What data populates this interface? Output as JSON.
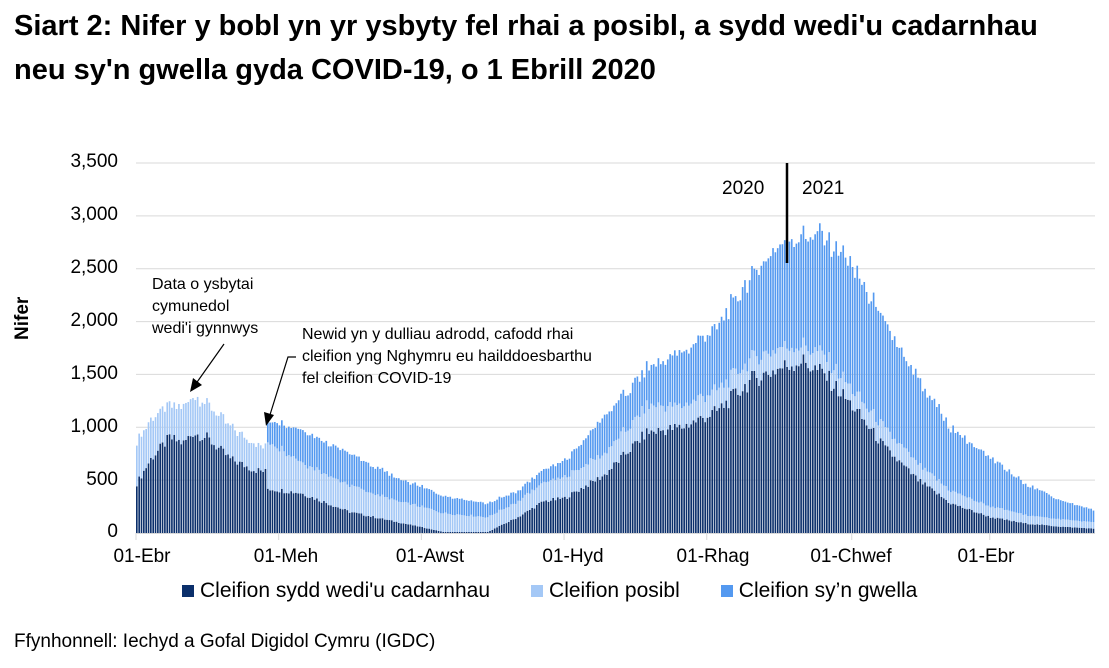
{
  "title": "Siart 2: Nifer y bobl yn yr ysbyty fel rhai a posibl, a sydd wedi'u cadarnhau neu sy'n gwella gyda COVID-19, o 1 Ebrill 2020",
  "source": "Ffynhonnell: Iechyd a Gofal Digidol Cymru (IGDC)",
  "colors": {
    "confirmed": "#0b2f6b",
    "suspected": "#a4c8f6",
    "recovering": "#5499f0",
    "grid": "#d9d9d9"
  },
  "chart_data": {
    "type": "bar",
    "stacked": true,
    "title": "Siart 2: Nifer y bobl yn yr ysbyty fel rhai a posibl, a sydd wedi'u cadarnhau neu sy'n gwella gyda COVID-19, o 1 Ebrill 2020",
    "xlabel": "",
    "ylabel": "Nifer",
    "ylim": [
      0,
      3500
    ],
    "yticks": [
      0,
      500,
      1000,
      1500,
      2000,
      2500,
      3000,
      3500
    ],
    "ytick_labels": [
      "0",
      "500",
      "1,000",
      "1,500",
      "2,000",
      "2,500",
      "3,000",
      "3,500"
    ],
    "xtick_labels": [
      "01-Ebr",
      "01-Meh",
      "01-Awst",
      "01-Hyd",
      "01-Rhag",
      "01-Chwef",
      "01-Ebr"
    ],
    "xtick_day_offsets": [
      0,
      61,
      122,
      183,
      244,
      306,
      365
    ],
    "grid": true,
    "legend_position": "bottom",
    "frequency": "daily",
    "start_date": "2020-04-01",
    "num_days": 410,
    "series_keypoints_note": "anchor values [day_offset, value], daily bars linearly interpolated between anchors",
    "series": [
      {
        "name": "Cleifion sydd wedi'u cadarnhau",
        "key": "confirmed",
        "anchors": [
          [
            0,
            470
          ],
          [
            6,
            700
          ],
          [
            14,
            900
          ],
          [
            20,
            850
          ],
          [
            24,
            950
          ],
          [
            30,
            900
          ],
          [
            40,
            700
          ],
          [
            50,
            600
          ],
          [
            55,
            580
          ],
          [
            56,
            420
          ],
          [
            70,
            380
          ],
          [
            91,
            200
          ],
          [
            110,
            110
          ],
          [
            125,
            40
          ],
          [
            131,
            10
          ],
          [
            150,
            10
          ],
          [
            163,
            150
          ],
          [
            174,
            300
          ],
          [
            183,
            330
          ],
          [
            200,
            550
          ],
          [
            218,
            950
          ],
          [
            233,
            1000
          ],
          [
            248,
            1150
          ],
          [
            263,
            1450
          ],
          [
            275,
            1560
          ],
          [
            284,
            1630
          ],
          [
            294,
            1500
          ],
          [
            306,
            1200
          ],
          [
            320,
            800
          ],
          [
            334,
            500
          ],
          [
            348,
            280
          ],
          [
            365,
            150
          ],
          [
            380,
            90
          ],
          [
            395,
            60
          ],
          [
            410,
            40
          ]
        ]
      },
      {
        "name": "Cleifion posibl",
        "key": "suspected",
        "anchors": [
          [
            0,
            400
          ],
          [
            10,
            350
          ],
          [
            14,
            300
          ],
          [
            24,
            350
          ],
          [
            30,
            330
          ],
          [
            40,
            300
          ],
          [
            50,
            250
          ],
          [
            55,
            230
          ],
          [
            56,
            450
          ],
          [
            70,
            300
          ],
          [
            91,
            250
          ],
          [
            110,
            200
          ],
          [
            125,
            190
          ],
          [
            150,
            140
          ],
          [
            163,
            150
          ],
          [
            183,
            200
          ],
          [
            200,
            200
          ],
          [
            218,
            250
          ],
          [
            233,
            200
          ],
          [
            248,
            200
          ],
          [
            263,
            200
          ],
          [
            275,
            200
          ],
          [
            284,
            150
          ],
          [
            294,
            180
          ],
          [
            306,
            150
          ],
          [
            320,
            180
          ],
          [
            334,
            150
          ],
          [
            348,
            120
          ],
          [
            365,
            100
          ],
          [
            380,
            80
          ],
          [
            395,
            70
          ],
          [
            410,
            60
          ]
        ]
      },
      {
        "name": "Cleifion sy’n gwella",
        "key": "recovering",
        "anchors": [
          [
            0,
            0
          ],
          [
            55,
            0
          ],
          [
            56,
            200
          ],
          [
            70,
            300
          ],
          [
            91,
            300
          ],
          [
            110,
            220
          ],
          [
            125,
            180
          ],
          [
            150,
            130
          ],
          [
            163,
            100
          ],
          [
            174,
            120
          ],
          [
            183,
            150
          ],
          [
            200,
            350
          ],
          [
            218,
            350
          ],
          [
            233,
            500
          ],
          [
            248,
            600
          ],
          [
            263,
            800
          ],
          [
            275,
            950
          ],
          [
            284,
            1050
          ],
          [
            294,
            1100
          ],
          [
            306,
            1150
          ],
          [
            320,
            1000
          ],
          [
            334,
            800
          ],
          [
            348,
            600
          ],
          [
            365,
            450
          ],
          [
            380,
            300
          ],
          [
            395,
            180
          ],
          [
            410,
            110
          ]
        ]
      }
    ],
    "annotations": [
      {
        "text": "Data o ysbytai cymunedol wedi'i gynnwys",
        "day": 24
      },
      {
        "text": "Newid yn y dulliau adrodd, cafodd rhai cleifion yng Nghymru eu hailddoesbarthu fel cleifion COVID-19",
        "day": 55
      },
      {
        "text": "2020 | 2021",
        "type": "year-divider",
        "day": 276
      }
    ]
  },
  "axis": {
    "ylabel": "Nifer",
    "yticks": [
      "3,500",
      "3,000",
      "2,500",
      "2,000",
      "1,500",
      "1,000",
      "500",
      "0"
    ],
    "xticks": [
      "01-Ebr",
      "01-Meh",
      "01-Awst",
      "01-Hyd",
      "01-Rhag",
      "01-Chwef",
      "01-Ebr"
    ]
  },
  "annotations": {
    "community": [
      "Data o ysbytai",
      "cymunedol",
      "wedi'i gynnwys"
    ],
    "reporting": [
      "Newid yn y dulliau adrodd, cafodd rhai",
      "cleifion yng Nghymru eu hailddoesbarthu",
      "fel cleifion COVID-19"
    ],
    "year_left": "2020",
    "year_right": "2021"
  },
  "legend": [
    {
      "label": "Cleifion sydd wedi'u cadarnhau",
      "color": "#0b2f6b"
    },
    {
      "label": "Cleifion posibl",
      "color": "#a4c8f6"
    },
    {
      "label": "Cleifion sy’n gwella",
      "color": "#5499f0"
    }
  ]
}
